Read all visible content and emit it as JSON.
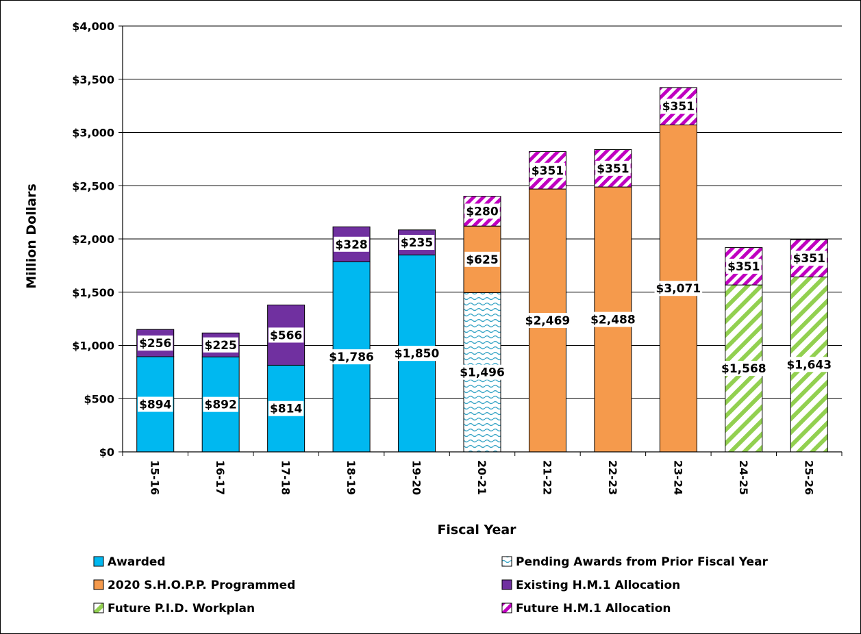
{
  "chart_data": {
    "type": "bar",
    "stacked": true,
    "xlabel": "Fiscal Year",
    "ylabel": "Million Dollars",
    "ylim": [
      0,
      4000
    ],
    "yticks": [
      0,
      500,
      1000,
      1500,
      2000,
      2500,
      3000,
      3500,
      4000
    ],
    "ytick_labels": [
      "$0",
      "$500",
      "$1,000",
      "$1,500",
      "$2,000",
      "$2,500",
      "$3,000",
      "$3,500",
      "$4,000"
    ],
    "grid": true,
    "legend_position": "bottom",
    "categories": [
      "15-16",
      "16-17",
      "17-18",
      "18-19",
      "19-20",
      "20-21",
      "21-22",
      "22-23",
      "23-24",
      "24-25",
      "25-26"
    ],
    "series": [
      {
        "name": "Awarded",
        "color": "#00b8f0",
        "pattern": "solid",
        "values": [
          894,
          892,
          814,
          1786,
          1850,
          null,
          null,
          null,
          null,
          null,
          null
        ],
        "labels": [
          "$894",
          "$892",
          "$814",
          "$1,786",
          "$1,850",
          "",
          "",
          "",
          "",
          "",
          ""
        ]
      },
      {
        "name": "Pending Awards from Prior Fiscal Year",
        "color": "#3aa6c7",
        "pattern": "waves",
        "values": [
          null,
          null,
          null,
          null,
          null,
          1496,
          null,
          null,
          null,
          null,
          null
        ],
        "labels": [
          "",
          "",
          "",
          "",
          "",
          "$1,496",
          "",
          "",
          "",
          "",
          ""
        ]
      },
      {
        "name": "2020 S.H.O.P.P. Programmed",
        "color": "#f59a4c",
        "pattern": "solid",
        "values": [
          null,
          null,
          null,
          null,
          null,
          625,
          2469,
          2488,
          3071,
          null,
          null
        ],
        "labels": [
          "",
          "",
          "",
          "",
          "",
          "$625",
          "$2,469",
          "$2,488",
          "$3,071",
          "",
          ""
        ]
      },
      {
        "name": "Existing H.M.1 Allocation",
        "color": "#7030a0",
        "pattern": "solid",
        "values": [
          256,
          225,
          566,
          328,
          235,
          null,
          null,
          null,
          null,
          null,
          null
        ],
        "labels": [
          "$256",
          "$225",
          "$566",
          "$328",
          "$235",
          "",
          "",
          "",
          "",
          "",
          ""
        ]
      },
      {
        "name": "Future P.I.D. Workplan",
        "color": "#92d050",
        "pattern": "diagonal",
        "values": [
          null,
          null,
          null,
          null,
          null,
          null,
          null,
          null,
          null,
          1568,
          1643
        ],
        "labels": [
          "",
          "",
          "",
          "",
          "",
          "",
          "",
          "",
          "",
          "$1,568",
          "$1,643"
        ]
      },
      {
        "name": "Future H.M.1 Allocation",
        "color": "#c000c0",
        "pattern": "diagonal",
        "values": [
          null,
          null,
          null,
          null,
          null,
          280,
          351,
          351,
          351,
          351,
          351
        ],
        "labels": [
          "",
          "",
          "",
          "",
          "",
          "$280",
          "$351",
          "$351",
          "$351",
          "$351",
          "$351"
        ]
      }
    ],
    "legend": [
      [
        "Awarded",
        "Pending Awards from Prior Fiscal Year"
      ],
      [
        "2020 S.H.O.P.P. Programmed",
        "Existing H.M.1 Allocation"
      ],
      [
        "Future P.I.D. Workplan",
        "Future H.M.1 Allocation"
      ]
    ]
  }
}
